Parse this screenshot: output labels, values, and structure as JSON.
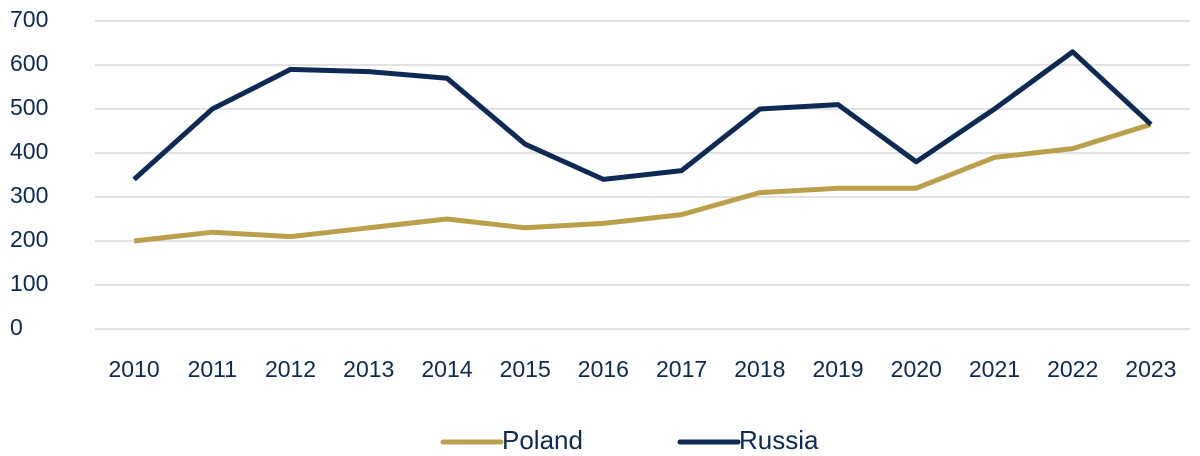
{
  "chart_data": {
    "type": "line",
    "categories": [
      "2010",
      "2011",
      "2012",
      "2013",
      "2014",
      "2015",
      "2016",
      "2017",
      "2018",
      "2019",
      "2020",
      "2021",
      "2022",
      "2023"
    ],
    "series": [
      {
        "name": "Poland",
        "color": "#bba04b",
        "values": [
          200,
          220,
          210,
          230,
          250,
          230,
          240,
          260,
          310,
          320,
          320,
          390,
          410,
          465
        ]
      },
      {
        "name": "Russia",
        "color": "#0d2a55",
        "values": [
          340,
          500,
          590,
          585,
          570,
          420,
          340,
          360,
          500,
          510,
          380,
          500,
          630,
          465
        ]
      }
    ],
    "ylim": [
      0,
      700
    ],
    "yticks": [
      0,
      100,
      200,
      300,
      400,
      500,
      600,
      700
    ],
    "grid": true,
    "legend": "bottom"
  }
}
